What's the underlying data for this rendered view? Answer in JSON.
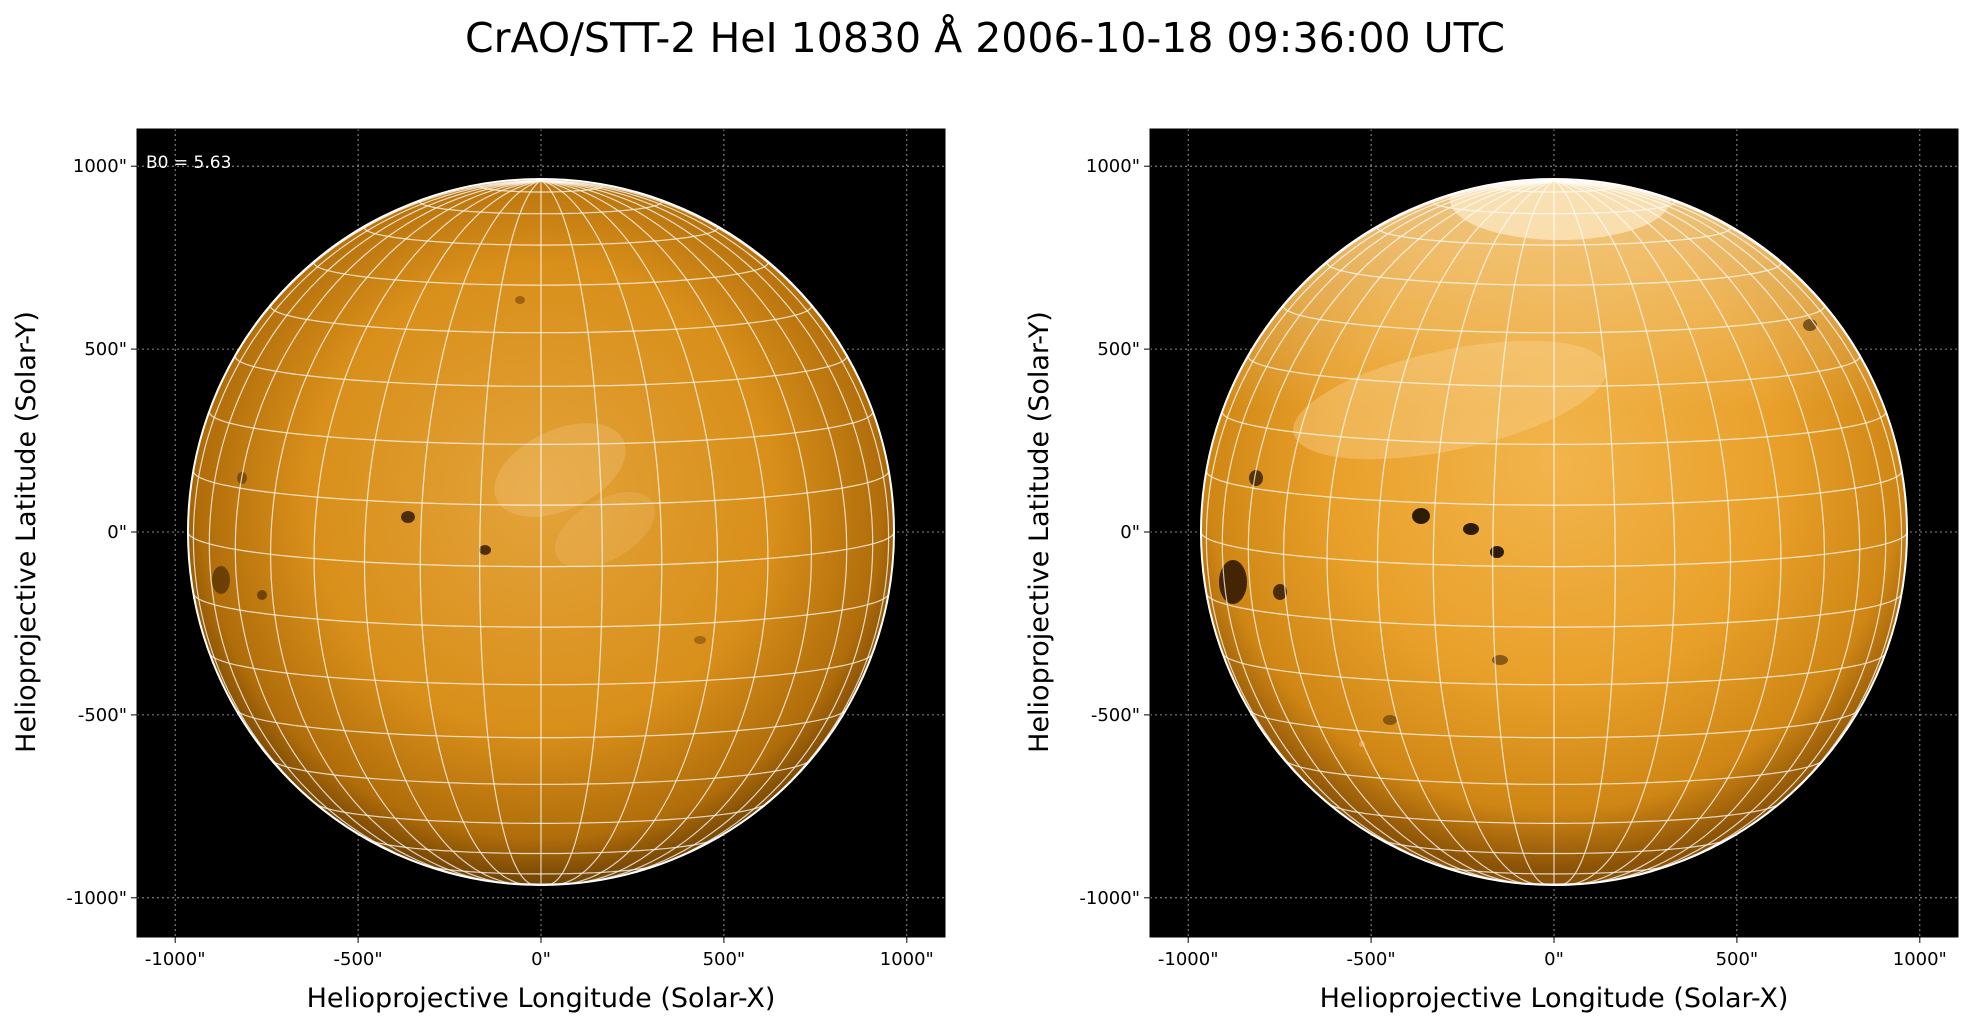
{
  "figure": {
    "title": "CrAO/STT-2 HeI 10830 Å 2006-10-18 09:36:00 UTC"
  },
  "panels": [
    {
      "name": "left",
      "annotation": "B0 = 5.63",
      "xlabel": "Helioprojective Longitude (Solar-X)",
      "ylabel": "Helioprojective Latitude (Solar-Y)",
      "xticks": [
        "-1000\"",
        "-500\"",
        "0\"",
        "500\"",
        "1000\""
      ],
      "yticks": [
        "1000\"",
        "500\"",
        "0\"",
        "-500\"",
        "-1000\""
      ]
    },
    {
      "name": "right",
      "annotation": "",
      "xlabel": "Helioprojective Longitude (Solar-X)",
      "ylabel": "Helioprojective Latitude (Solar-Y)",
      "xticks": [
        "-1000\"",
        "-500\"",
        "0\"",
        "500\"",
        "1000\""
      ],
      "yticks": [
        "1000\"",
        "500\"",
        "0\"",
        "-500\"",
        "-1000\""
      ]
    }
  ],
  "colors": {
    "sky": "#000000",
    "disk_light": "#f0a21a",
    "disk_mid": "#d98a0c",
    "disk_dark": "#6b3d00",
    "grid": "#ffffff",
    "limb": "#ffffff"
  }
}
